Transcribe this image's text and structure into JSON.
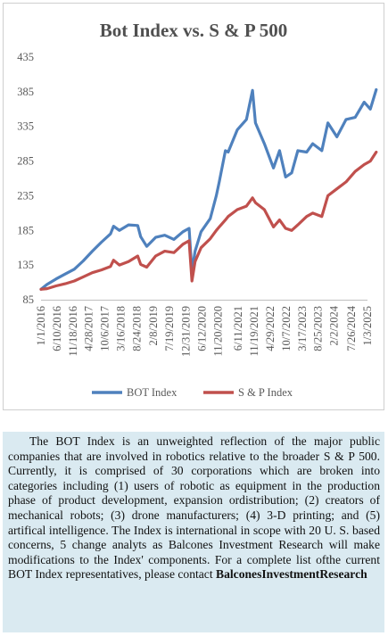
{
  "chart_data": {
    "type": "line",
    "title": "Bot Index vs. S & P 500",
    "x_tick_labels": [
      "1/1/2016",
      "6/10/2016",
      "11/18/2016",
      "4/28/2017",
      "10/6/2017",
      "3/16/2018",
      "8/24/2018",
      "2/8/2019",
      "7/19/2019",
      "12/31/2019",
      "6/12/2020",
      "11/20/2020",
      "6/11/2021",
      "11/19/2021",
      "4/29/2022",
      "10/7/2022",
      "3/17/2023",
      "8/25/2023",
      "2/2/2024",
      "7/26/2024",
      "1/3/2025"
    ],
    "y_ticks": [
      85,
      135,
      185,
      235,
      285,
      335,
      385,
      435
    ],
    "ylim": [
      85,
      435
    ],
    "x": [
      "2016-01",
      "2016-03",
      "2016-06",
      "2016-09",
      "2016-12",
      "2017-03",
      "2017-06",
      "2017-09",
      "2017-12",
      "2018-01",
      "2018-03",
      "2018-06",
      "2018-09",
      "2018-10",
      "2018-12",
      "2019-03",
      "2019-06",
      "2019-09",
      "2019-12",
      "2020-02",
      "2020-03",
      "2020-04",
      "2020-06",
      "2020-09",
      "2020-11",
      "2020-12",
      "2021-02",
      "2021-03",
      "2021-06",
      "2021-09",
      "2021-11",
      "2021-12",
      "2022-03",
      "2022-06",
      "2022-08",
      "2022-10",
      "2022-12",
      "2023-02",
      "2023-05",
      "2023-07",
      "2023-10",
      "2023-12",
      "2024-03",
      "2024-06",
      "2024-09",
      "2024-12",
      "2025-02",
      "2025-04"
    ],
    "series": [
      {
        "name": "BOT Index",
        "color": "#4f81bd",
        "values": [
          100,
          107,
          115,
          122,
          129,
          141,
          155,
          168,
          180,
          191,
          185,
          193,
          192,
          176,
          162,
          175,
          178,
          172,
          183,
          188,
          125,
          155,
          183,
          202,
          235,
          255,
          300,
          298,
          330,
          345,
          387,
          340,
          310,
          275,
          300,
          262,
          268,
          300,
          298,
          310,
          300,
          340,
          320,
          345,
          348,
          370,
          360,
          388
        ]
      },
      {
        "name": "S & P Index",
        "color": "#c0504d",
        "values": [
          100,
          101,
          105,
          108,
          112,
          118,
          124,
          128,
          133,
          142,
          135,
          140,
          148,
          136,
          132,
          148,
          155,
          153,
          165,
          170,
          112,
          140,
          160,
          173,
          185,
          190,
          200,
          205,
          215,
          220,
          232,
          225,
          215,
          190,
          200,
          188,
          185,
          193,
          205,
          210,
          205,
          235,
          245,
          255,
          270,
          280,
          285,
          298
        ]
      }
    ],
    "legend_position": "bottom"
  },
  "description": {
    "text": "The BOT Index is an unweighted reflection of the major public companies that are involved in robotics relative to the broader S & P 500. Currently, it is comprised of 30 corporations which are broken into categories including (1) users of robotic as equipment in the production phase of product development, expansion ordistribution; (2) creators of mechanical robots; (3) drone manufacturers; (4) 3-D printing; and (5) artifical intelligence. The Index is international in scope with 20 U. S. based concerns, 5 change analyts as Balcones Investment Research will make modifications to the Index' components. For a  complete list ofthe current BOT Index representatives, please contact",
    "contact": "BalconesInvestmentResearch"
  },
  "colors": {
    "bot": "#4f81bd",
    "sp": "#c0504d",
    "description_bg": "#daeaf1"
  }
}
